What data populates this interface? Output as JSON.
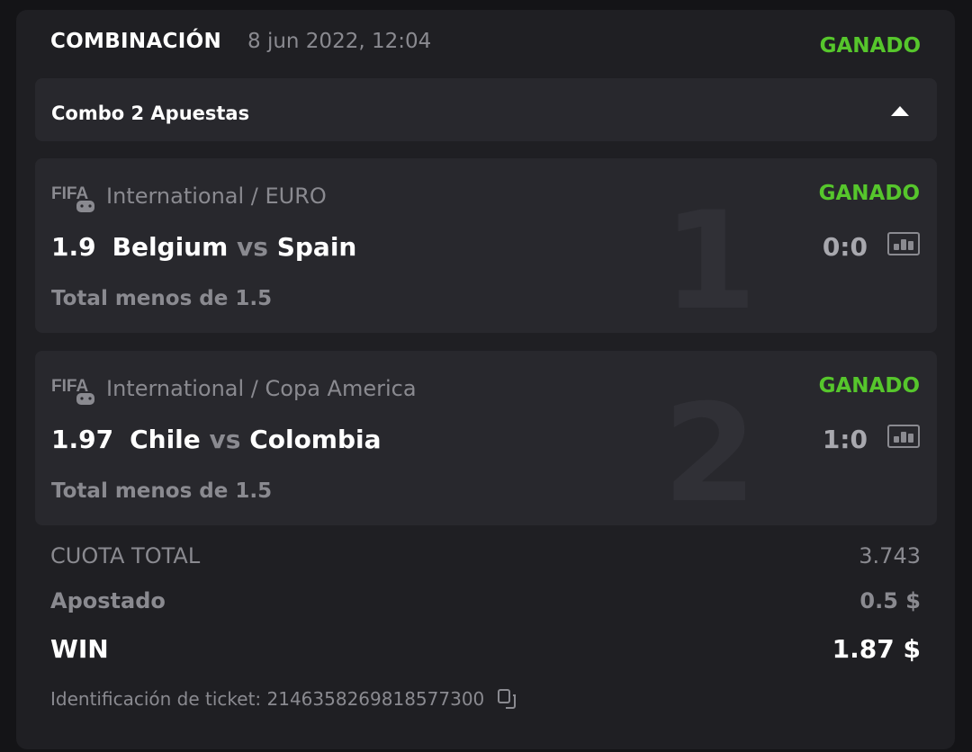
{
  "header": {
    "title": "COMBINACIÓN",
    "date": "8 jun 2022, 12:04",
    "status": "GANADO"
  },
  "combo": {
    "label": "Combo 2 Apuestas",
    "toggle_icon": "caret-up-icon"
  },
  "bets": [
    {
      "number": "1",
      "sport": "FIFA",
      "league": "International / EURO",
      "status": "GANADO",
      "odd": "1.9",
      "home": "Belgium",
      "vs": "vs",
      "away": "Spain",
      "score": "0:0",
      "market": "Total menos de 1.5"
    },
    {
      "number": "2",
      "sport": "FIFA",
      "league": "International / Copa America",
      "status": "GANADO",
      "odd": "1.97",
      "home": "Chile",
      "vs": "vs",
      "away": "Colombia",
      "score": "1:0",
      "market": "Total menos de 1.5"
    }
  ],
  "summary": {
    "total_odds_label": "CUOTA TOTAL",
    "total_odds": "3.743",
    "staked_label": "Apostado",
    "staked": "0.5 $",
    "win_label": "WIN",
    "win": "1.87 $"
  },
  "ticket": {
    "label": "Identificación de ticket: 2146358269818577300",
    "copy_icon": "copy-icon"
  },
  "colors": {
    "won": "#56c62c",
    "card": "#1f1f23",
    "panel": "#28282d"
  }
}
